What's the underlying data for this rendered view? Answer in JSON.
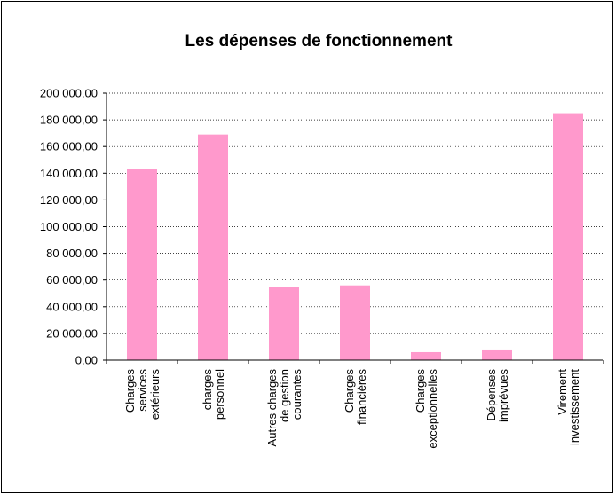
{
  "chart_data": {
    "type": "bar",
    "title": "Les dépenses de fonctionnement",
    "categories": [
      [
        "Charges",
        "services",
        "extérieurs"
      ],
      [
        "charges",
        "personnel"
      ],
      [
        "Autres charges",
        "de gestion",
        "courantes"
      ],
      [
        "Charges",
        "financières"
      ],
      [
        "Charges",
        "exceptionnelles"
      ],
      [
        "Dépenses",
        "imprévues"
      ],
      [
        "Virement",
        "investissement"
      ]
    ],
    "values": [
      143500,
      169000,
      55000,
      56000,
      6000,
      8000,
      185000
    ],
    "color": "#ff99cc",
    "ylim": [
      0,
      200000
    ],
    "yticks": [
      {
        "value": 0,
        "label": "0,00"
      },
      {
        "value": 20000,
        "label": "20 000,00"
      },
      {
        "value": 40000,
        "label": "40 000,00"
      },
      {
        "value": 60000,
        "label": "60 000,00"
      },
      {
        "value": 80000,
        "label": "80 000,00"
      },
      {
        "value": 100000,
        "label": "100 000,00"
      },
      {
        "value": 120000,
        "label": "120 000,00"
      },
      {
        "value": 140000,
        "label": "140 000,00"
      },
      {
        "value": 160000,
        "label": "160 000,00"
      },
      {
        "value": 180000,
        "label": "180 000,00"
      },
      {
        "value": 200000,
        "label": "200 000,00"
      }
    ],
    "grid": true
  }
}
